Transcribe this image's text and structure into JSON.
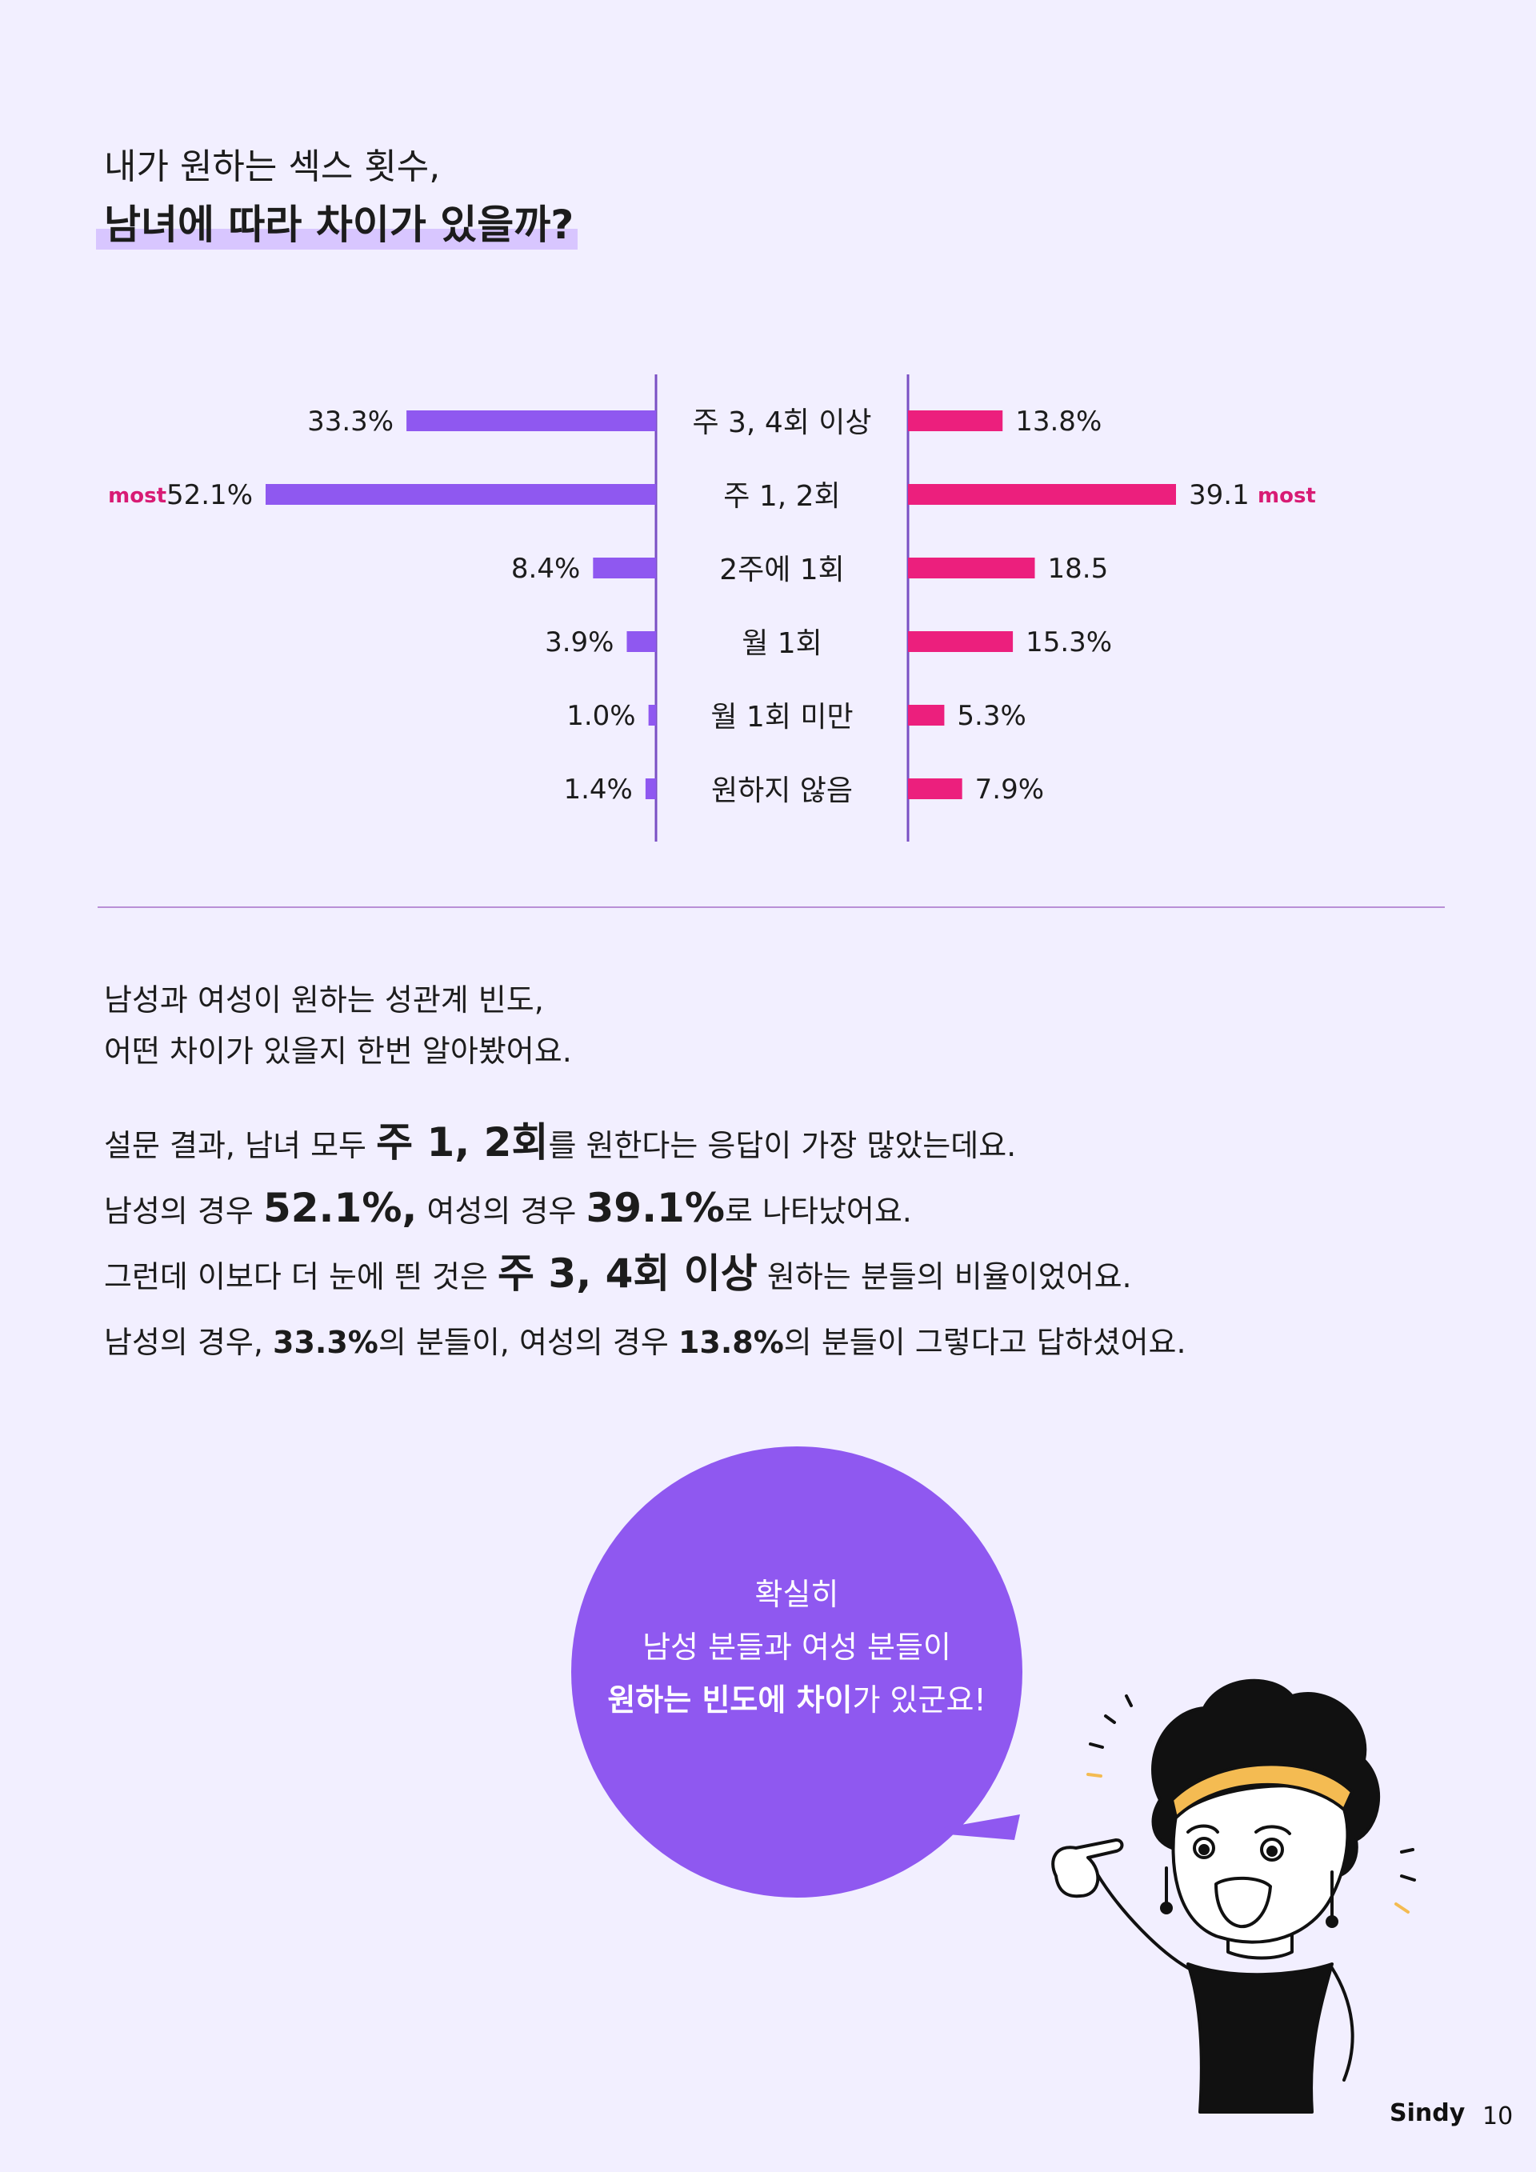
{
  "header": {
    "title_line1": "내가 원하는 섹스 횟수,",
    "title_line2": "남녀에 따라 차이가 있을까?"
  },
  "chart_data": {
    "type": "bar",
    "categories": [
      "주 3, 4회 이상",
      "주 1, 2회",
      "2주에 1회",
      "월 1회",
      "월 1회 미만",
      "원하지 않음"
    ],
    "series": [
      {
        "values": [
          33.3,
          52.1,
          8.4,
          3.9,
          1.0,
          1.4
        ],
        "labels": [
          "33.3%",
          "52.1%",
          "8.4%",
          "3.9%",
          "1.0%",
          "1.4%"
        ],
        "color": "#8f58f0"
      },
      {
        "values": [
          13.8,
          39.1,
          18.5,
          15.3,
          5.3,
          7.9
        ],
        "labels": [
          "13.8%",
          "39.1",
          "18.5",
          "15.3%",
          "5.3%",
          "7.9%"
        ],
        "color": "#ec1f7d"
      }
    ],
    "annotation": "most",
    "annotation_color": "#d81b74",
    "axis_color": "#7a4fc4"
  },
  "intro": {
    "line1": "남성과 여성이 원하는 성관계 빈도,",
    "line2": "어떤 차이가 있을지 한번 알아봤어요."
  },
  "paragraphs": {
    "p1_a": "설문 결과, 남녀 모두 ",
    "p1_b": "주 1, 2회",
    "p1_c": "를 원한다는 응답이 가장 많았는데요.",
    "p2_a": "남성의 경우 ",
    "p2_b": "52.1%,",
    "p2_c": " 여성의 경우 ",
    "p2_d": "39.1%",
    "p2_e": "로 나타났어요.",
    "p3_a": "그런데 이보다 더 눈에 띈 것은 ",
    "p3_b": "주 3, 4회 이상",
    "p3_c": " 원하는 분들의 비율이었어요.",
    "p4_a": "남성의 경우, ",
    "p4_b": "33.3%",
    "p4_c": "의 분들이, 여성의 경우 ",
    "p4_d": "13.8%",
    "p4_e": "의 분들이 그렇다고 답하셨어요."
  },
  "bubble": {
    "line1": "확실히",
    "line2": "남성 분들과 여성 분들이",
    "line3_bold": "원하는 빈도에 차이",
    "line3_rest": "가 있군요!",
    "color": "#8f58f0"
  },
  "footer": {
    "brand": "Sindy",
    "page": "10"
  }
}
